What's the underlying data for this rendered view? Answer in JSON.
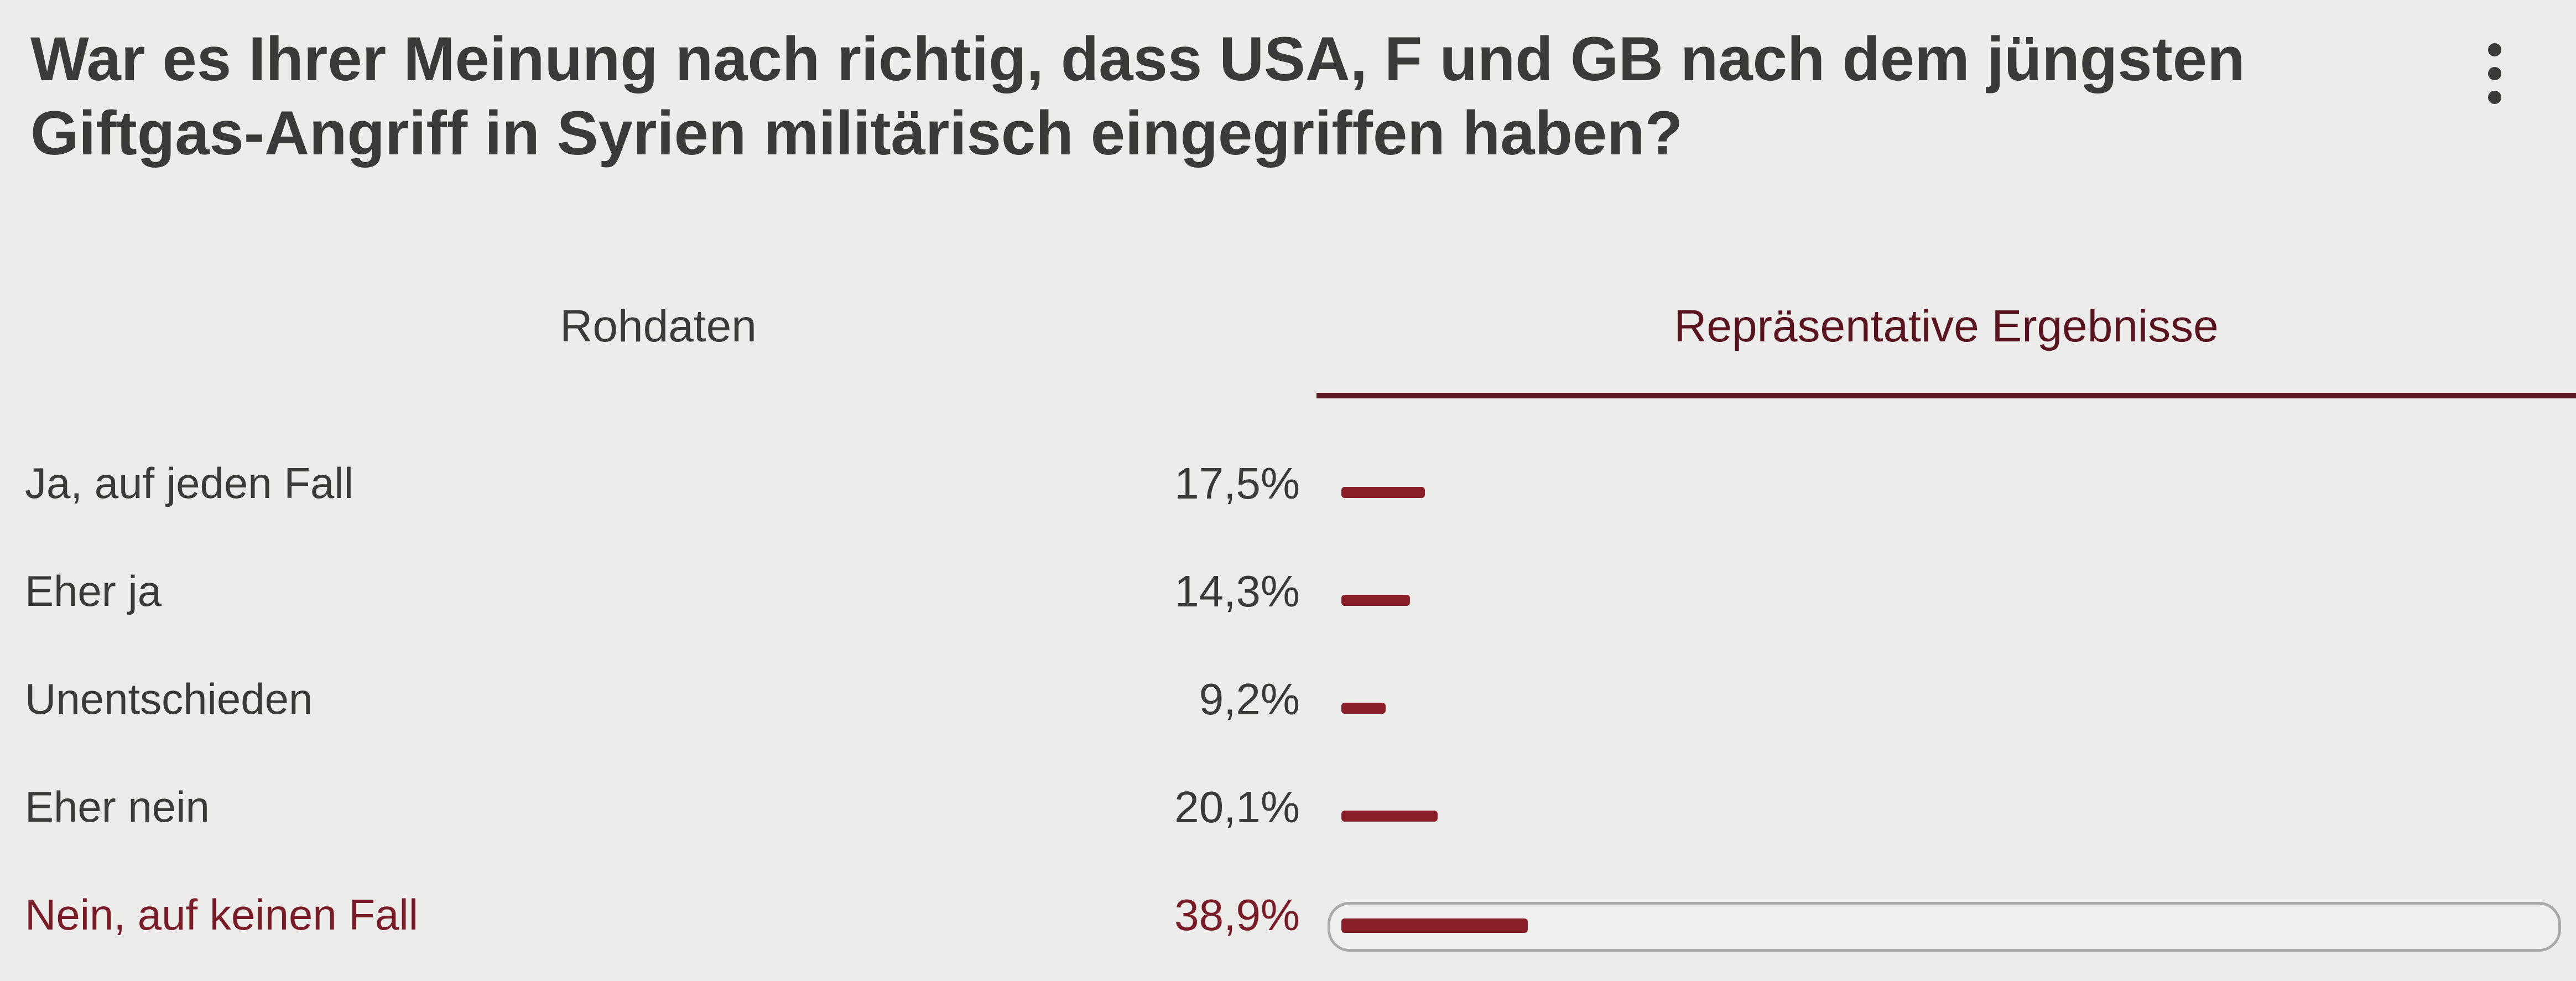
{
  "poll": {
    "question": "War es Ihrer Meinung nach richtig, dass USA, F und GB nach dem jüngsten Giftgas-Angriff in Syrien militärisch eingegriffen haben?",
    "menu_icon": "vertical-ellipsis-icon",
    "tabs": [
      {
        "label": "Rohdaten",
        "active": false
      },
      {
        "label": "Repräsentative Ergebnisse",
        "active": true
      }
    ],
    "accent_color": "#8a1f2a",
    "results": [
      {
        "label": "Ja, auf jeden Fall",
        "value_text": "17,5%",
        "percent": 17.5,
        "selected": false
      },
      {
        "label": "Eher ja",
        "value_text": "14,3%",
        "percent": 14.3,
        "selected": false
      },
      {
        "label": "Unentschieden",
        "value_text": "9,2%",
        "percent": 9.2,
        "selected": false
      },
      {
        "label": "Eher nein",
        "value_text": "20,1%",
        "percent": 20.1,
        "selected": false
      },
      {
        "label": "Nein, auf keinen Fall",
        "value_text": "38,9%",
        "percent": 38.9,
        "selected": true
      }
    ]
  }
}
